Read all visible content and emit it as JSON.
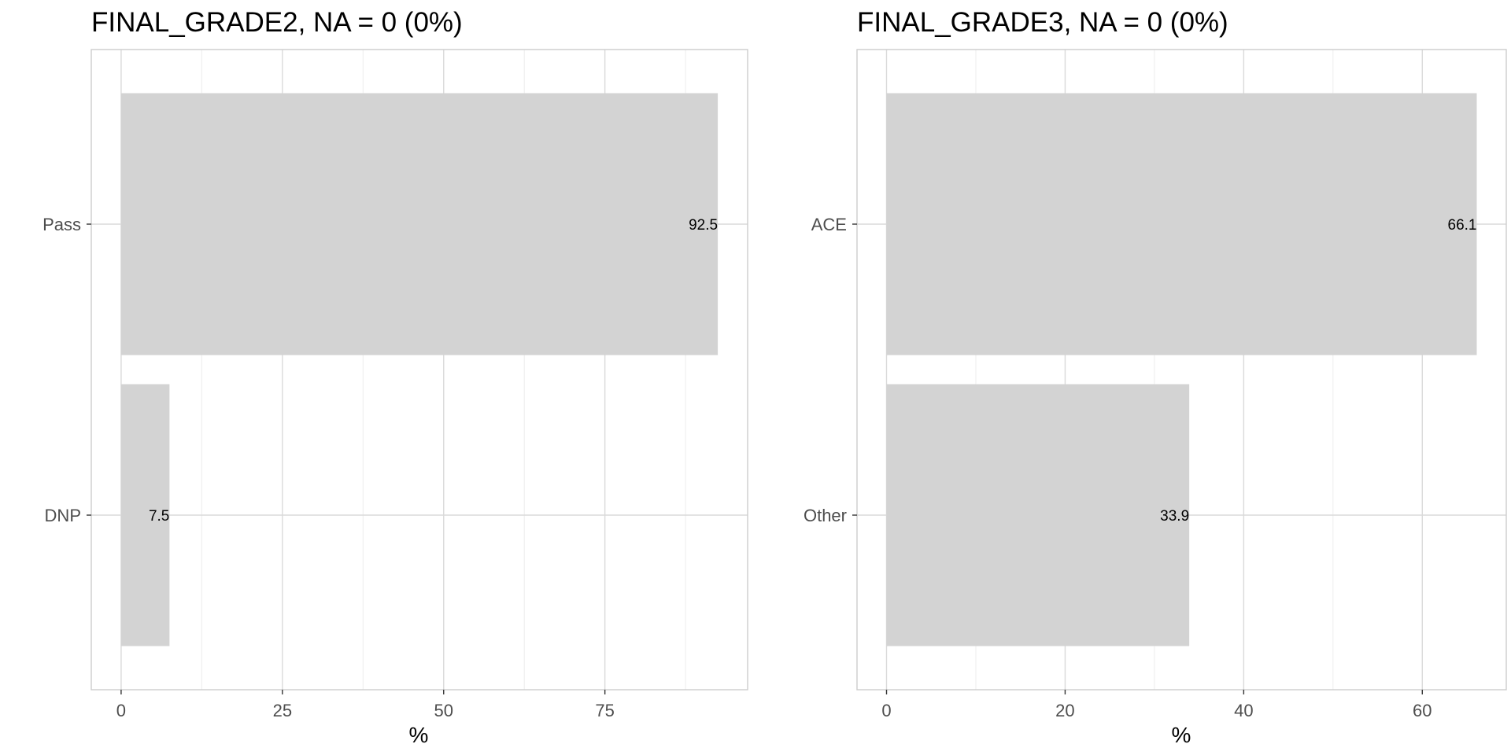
{
  "colors": {
    "bar": "#d3d3d3",
    "grid_major": "#dadada",
    "grid_minor": "#ededed",
    "panel_border": "#cccccc",
    "tick": "#333333"
  },
  "chart_data": [
    {
      "type": "bar",
      "orientation": "horizontal",
      "title": "FINAL_GRADE2, NA = 0 (0%)",
      "xlabel": "%",
      "ylabel": "",
      "categories": [
        "Pass",
        "DNP"
      ],
      "values": [
        92.5,
        7.5
      ],
      "data_labels": [
        "92.5",
        "7.5"
      ],
      "xlim": [
        -4.625,
        97.125
      ],
      "x_ticks": [
        0,
        25,
        50,
        75
      ],
      "x_tick_labels": [
        "0",
        "25",
        "50",
        "75"
      ],
      "grid": true
    },
    {
      "type": "bar",
      "orientation": "horizontal",
      "title": "FINAL_GRADE3, NA = 0 (0%)",
      "xlabel": "%",
      "ylabel": "",
      "categories": [
        "ACE",
        "Other"
      ],
      "values": [
        66.1,
        33.9
      ],
      "data_labels": [
        "66.1",
        "33.9"
      ],
      "xlim": [
        -3.305,
        69.405
      ],
      "x_ticks": [
        0,
        20,
        40,
        60
      ],
      "x_tick_labels": [
        "0",
        "20",
        "40",
        "60"
      ],
      "grid": true
    }
  ]
}
